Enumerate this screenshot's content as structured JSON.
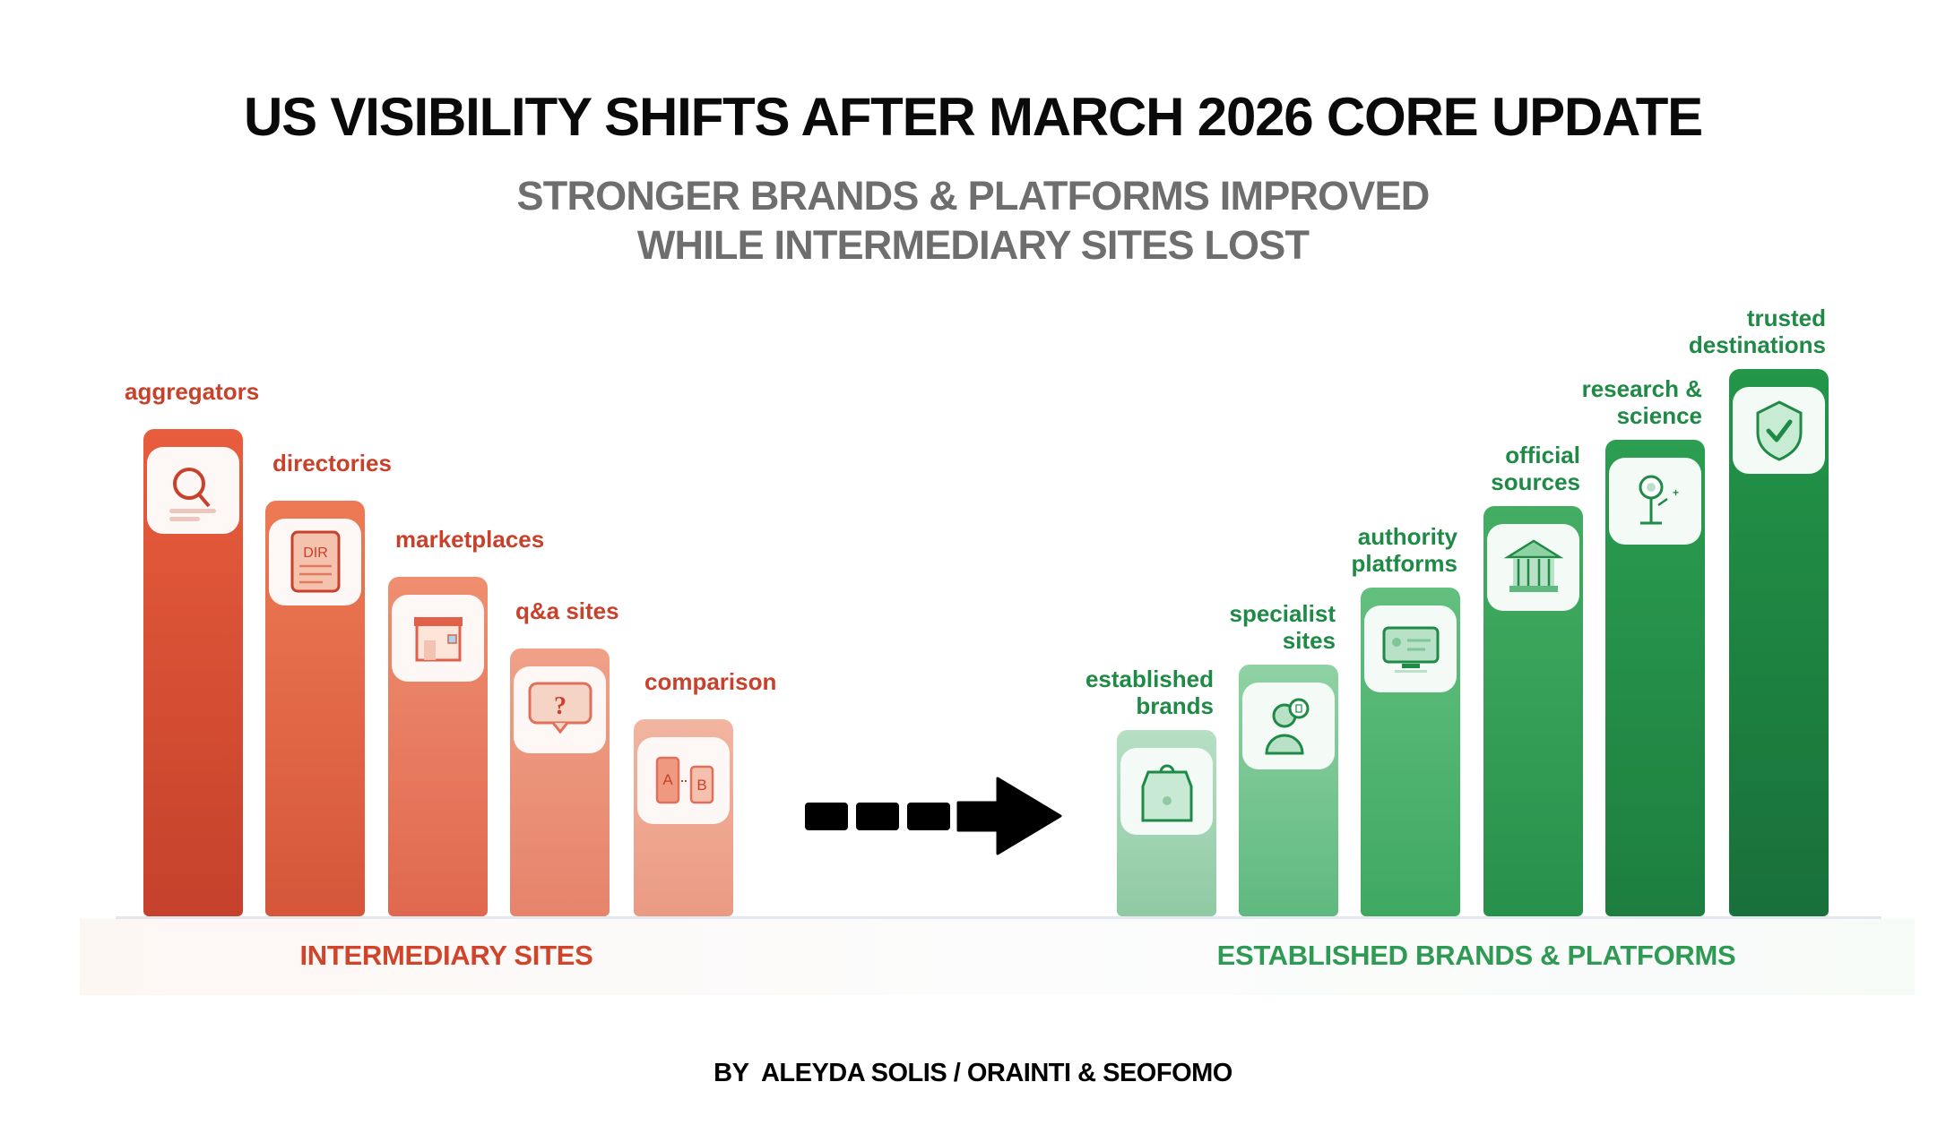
{
  "title": "US VISIBILITY SHIFTS AFTER MARCH 2026 CORE UPDATE",
  "subtitle": [
    "STRONGER BRANDS & PLATFORMS IMPROVED",
    "WHILE INTERMEDIARY SITES LOST"
  ],
  "groups": {
    "losers": {
      "label": "INTERMEDIARY SITES",
      "color": "#d0442c"
    },
    "winners": {
      "label": "ESTABLISHED BRANDS & PLATFORMS",
      "color": "#2e9a53"
    }
  },
  "byline": "BY  ALEYDA SOLIS / ORAINTI & SEOFOMO",
  "chart_data": {
    "type": "bar",
    "title": "US VISIBILITY SHIFTS AFTER MARCH 2026 CORE UPDATE",
    "xlabel": "",
    "ylabel": "",
    "grid": false,
    "axis_ticks": false,
    "ylim": [
      0,
      100
    ],
    "series": [
      {
        "group": "losers",
        "categories": [
          "aggregators",
          "directories",
          "marketplaces",
          "q&a sites",
          "comparison"
        ],
        "values": [
          89,
          76,
          62,
          49,
          36
        ],
        "icons": [
          "magnifier-icon",
          "directory-document-icon",
          "storefront-icon",
          "question-bubble-icon",
          "ab-comparison-icon"
        ],
        "colors": [
          [
            "#e85d3d",
            "#c5412b"
          ],
          [
            "#ee7a55",
            "#d5563a"
          ],
          [
            "#ef8f70",
            "#e0684e"
          ],
          [
            "#f0a187",
            "#e6836b"
          ],
          [
            "#f2b5a0",
            "#eb9a82"
          ]
        ]
      },
      {
        "group": "winners",
        "categories": [
          [
            "established",
            "brands"
          ],
          [
            "specialist",
            "sites"
          ],
          [
            "authority",
            "platforms"
          ],
          [
            "official",
            "sources"
          ],
          [
            "research &",
            "science"
          ],
          [
            "trusted",
            "destinations"
          ]
        ],
        "values": [
          34,
          46,
          60,
          75,
          87,
          100
        ],
        "icons": [
          "shopping-bag-icon",
          "expert-person-icon",
          "monitor-profile-icon",
          "government-building-icon",
          "microscope-icon",
          "shield-check-icon"
        ],
        "colors": [
          [
            "#b6dfc4",
            "#8fcaa3"
          ],
          [
            "#8fd2a4",
            "#5fb97f"
          ],
          [
            "#63c07f",
            "#3ea861"
          ],
          [
            "#43ad63",
            "#27914b"
          ],
          [
            "#2b9e51",
            "#1d7e3f"
          ],
          [
            "#239648",
            "#18703a"
          ]
        ]
      }
    ]
  }
}
